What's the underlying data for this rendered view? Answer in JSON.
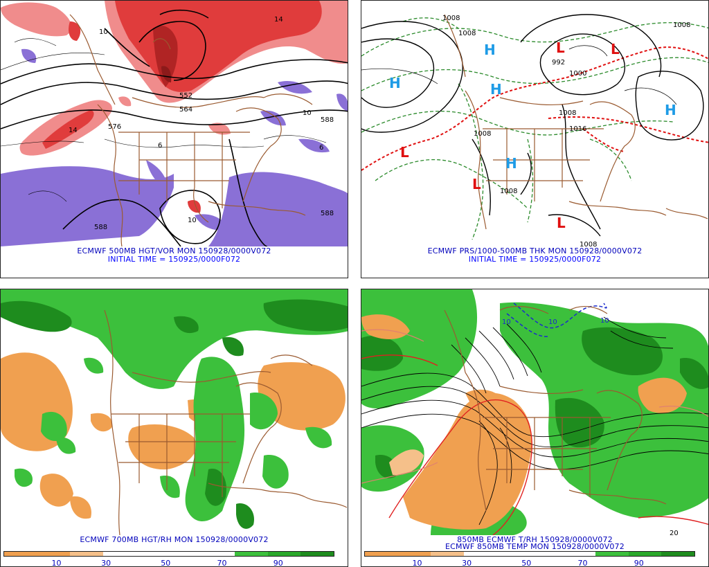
{
  "panels": {
    "tl": {
      "caption_line1": "ECMWF 500MB HGT/VOR MON 150928/0000V072",
      "caption_line2": "INITIAL TIME = 150925/0000F072",
      "contour_labels": [
        "10",
        "14",
        "552",
        "564",
        "576",
        "588",
        "588",
        "588",
        "6",
        "6",
        "10",
        "10",
        "14"
      ]
    },
    "tr": {
      "caption_line1": "ECMWF PRS/1000-500MB THK MON 150928/0000V072",
      "caption_line2": "INITIAL TIME = 150925/0000F072",
      "pressure_centers": [
        {
          "type": "H",
          "color": "#1e9be6"
        },
        {
          "type": "H",
          "color": "#1e9be6"
        },
        {
          "type": "H",
          "color": "#1e9be6"
        },
        {
          "type": "H",
          "color": "#1e9be6"
        },
        {
          "type": "H",
          "color": "#1e9be6"
        },
        {
          "type": "L",
          "color": "#e01010"
        },
        {
          "type": "L",
          "color": "#e01010"
        },
        {
          "type": "L",
          "color": "#e01010"
        },
        {
          "type": "L",
          "color": "#e01010"
        },
        {
          "type": "L",
          "color": "#e01010"
        }
      ],
      "isobar_labels": [
        "1008",
        "1008",
        "992",
        "1000",
        "1008",
        "1016",
        "1008",
        "1008",
        "1008",
        "1008"
      ]
    },
    "bl": {
      "caption": "ECMWF 700MB HGT/RH MON 150928/0000V072",
      "colorbar_ticks": [
        "10",
        "30",
        "50",
        "70",
        "90"
      ]
    },
    "br": {
      "caption_line1": "850MB ECMWF T/RH 150928/0000V072",
      "caption_line2": "ECMWF 850MB TEMP MON 150928/0000V072",
      "colorbar_ticks": [
        "10",
        "30",
        "50",
        "70",
        "90"
      ],
      "contour_labels": [
        "10",
        "10",
        "20",
        "10"
      ]
    }
  },
  "colors": {
    "vort_red_light": "#f08c8c",
    "vort_red": "#e03c3c",
    "vort_red_dark": "#8c1a1a",
    "vort_purple": "#8a70d6",
    "rh_orange": "#f0a050",
    "rh_green_light": "#3cc03c",
    "rh_green_dark": "#1e8c1e",
    "border_brown": "#9a5a30",
    "caption_blue": "#0000bb"
  }
}
